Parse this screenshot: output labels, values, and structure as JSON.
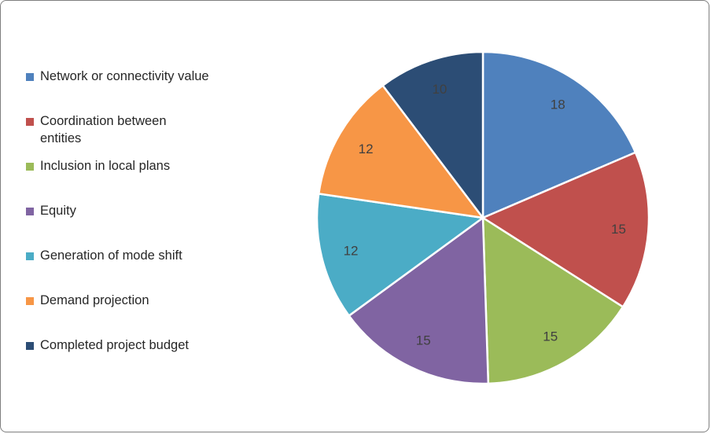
{
  "chart_data": {
    "type": "pie",
    "title": "",
    "categories": [
      "Network or connectivity value",
      "Coordination between entities",
      "Inclusion in local plans",
      "Equity",
      "Generation of mode shift",
      "Demand projection",
      "Completed project budget"
    ],
    "values": [
      18,
      15,
      15,
      15,
      12,
      12,
      10
    ],
    "colors": [
      "#4F81BD",
      "#C0504D",
      "#9BBB59",
      "#8064A2",
      "#4BACC6",
      "#F79646",
      "#2C4D75"
    ],
    "data_labels": [
      "18",
      "15",
      "15",
      "15",
      "12",
      "12",
      "10"
    ],
    "start_angle_deg": 0,
    "direction": "clockwise",
    "legend_position": "left",
    "label_color": "#404040",
    "slice_border_color": "#FFFFFF",
    "background_color": "#FFFFFF"
  }
}
